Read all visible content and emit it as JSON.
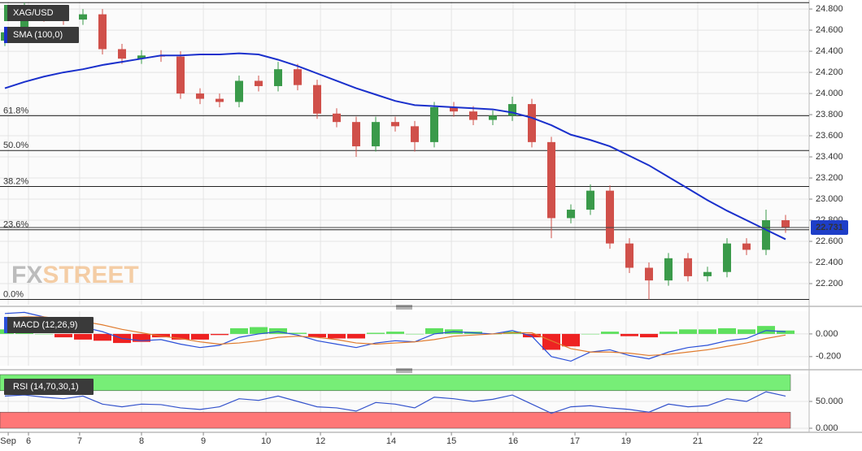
{
  "chart_data": [
    {
      "type": "candlestick",
      "title": "XAG/USD",
      "open": [
        24.5,
        24.58,
        24.75,
        24.73,
        24.7,
        24.75,
        24.42,
        24.33,
        24.36,
        24.35,
        24.0,
        23.95,
        23.92,
        24.12,
        24.07,
        24.23,
        24.08,
        23.81,
        23.73,
        23.5,
        23.73,
        23.69,
        23.54,
        23.87,
        23.83,
        23.75,
        23.79,
        23.9,
        23.54,
        22.82,
        22.9,
        23.08,
        22.58,
        22.35,
        22.23,
        22.44,
        22.27,
        22.31,
        22.58,
        22.52,
        22.8
      ],
      "high": [
        24.63,
        24.86,
        24.8,
        24.78,
        24.8,
        24.8,
        24.47,
        24.41,
        24.41,
        24.4,
        24.05,
        24.0,
        24.17,
        24.17,
        24.3,
        24.28,
        24.13,
        23.86,
        23.78,
        23.78,
        23.78,
        23.74,
        23.92,
        23.92,
        23.88,
        23.84,
        23.97,
        23.95,
        23.59,
        22.95,
        23.14,
        23.13,
        22.63,
        22.4,
        22.49,
        22.49,
        22.36,
        22.63,
        22.63,
        22.9,
        22.85
      ],
      "low": [
        24.45,
        24.53,
        24.68,
        24.65,
        24.65,
        24.37,
        24.28,
        24.28,
        24.3,
        23.95,
        23.9,
        23.87,
        23.87,
        24.02,
        24.02,
        24.03,
        23.76,
        23.68,
        23.4,
        23.45,
        23.64,
        23.45,
        23.49,
        23.78,
        23.7,
        23.7,
        23.74,
        23.49,
        22.63,
        22.77,
        22.85,
        22.53,
        22.3,
        22.05,
        22.18,
        22.22,
        22.22,
        22.26,
        22.47,
        22.47,
        22.68
      ],
      "close": [
        24.58,
        24.75,
        24.73,
        24.7,
        24.75,
        24.42,
        24.33,
        24.36,
        24.35,
        24.0,
        23.95,
        23.92,
        24.12,
        24.07,
        24.23,
        24.08,
        23.81,
        23.73,
        23.5,
        23.73,
        23.69,
        23.54,
        23.87,
        23.83,
        23.75,
        23.79,
        23.9,
        23.54,
        22.82,
        22.9,
        23.08,
        22.58,
        22.35,
        22.23,
        22.44,
        22.27,
        22.31,
        22.58,
        22.52,
        22.8,
        22.73
      ],
      "up_color": "#3a9a4a",
      "down_color": "#d0504a",
      "series": [
        {
          "name": "SMA (100,0)",
          "color": "#1a30cc",
          "values": [
            24.05,
            24.11,
            24.16,
            24.2,
            24.23,
            24.27,
            24.3,
            24.33,
            24.36,
            24.36,
            24.37,
            24.37,
            24.38,
            24.37,
            24.32,
            24.26,
            24.19,
            24.12,
            24.05,
            23.99,
            23.93,
            23.89,
            23.88,
            23.87,
            23.86,
            23.85,
            23.82,
            23.77,
            23.7,
            23.61,
            23.56,
            23.5,
            23.41,
            23.32,
            23.21,
            23.1,
            22.99,
            22.89,
            22.8,
            22.71,
            22.62
          ]
        }
      ],
      "fib_levels": [
        {
          "value": 24.86,
          "label": null
        },
        {
          "value": 23.79,
          "label": "61.8%"
        },
        {
          "value": 23.46,
          "label": "50.0%"
        },
        {
          "value": 23.12,
          "label": "38.2%"
        },
        {
          "value": 22.71,
          "label": "23.6%"
        },
        {
          "value": 22.05,
          "label": "0.0%"
        }
      ],
      "last_price": 22.731,
      "last_price_color": "#1e3ec8",
      "watermark": [
        "FX",
        "STREET"
      ],
      "ylim": [
        22.0,
        24.87
      ],
      "yticks": [
        {
          "value": 22.2,
          "label": "22.200"
        },
        {
          "value": 22.4,
          "label": "22.400"
        },
        {
          "value": 22.6,
          "label": "22.600"
        },
        {
          "value": 22.8,
          "label": "22.800"
        },
        {
          "value": 23.0,
          "label": "23.000"
        },
        {
          "value": 23.2,
          "label": "23.200"
        },
        {
          "value": 23.4,
          "label": "23.400"
        },
        {
          "value": 23.6,
          "label": "23.600"
        },
        {
          "value": 23.8,
          "label": "23.800"
        },
        {
          "value": 24.0,
          "label": "24.000"
        },
        {
          "value": 24.2,
          "label": "24.200"
        },
        {
          "value": 24.4,
          "label": "24.400"
        },
        {
          "value": 24.6,
          "label": "24.600"
        },
        {
          "value": 24.8,
          "label": "24.800"
        }
      ],
      "grid": true
    },
    {
      "type": "macd",
      "title": "MACD (12,26,9)",
      "series": [
        {
          "color": "#2a4fd8",
          "values": [
            0.18,
            0.19,
            0.15,
            0.1,
            0.06,
            0.02,
            -0.04,
            -0.06,
            -0.05,
            -0.09,
            -0.12,
            -0.1,
            -0.03,
            0.0,
            0.02,
            -0.01,
            -0.06,
            -0.09,
            -0.12,
            -0.08,
            -0.06,
            -0.07,
            0.0,
            0.02,
            0.01,
            0.0,
            0.03,
            -0.02,
            -0.2,
            -0.24,
            -0.16,
            -0.14,
            -0.19,
            -0.22,
            -0.16,
            -0.12,
            -0.1,
            -0.06,
            -0.04,
            0.03,
            0.02
          ]
        },
        {
          "color": "#e07a2c",
          "values": [
            0.14,
            0.15,
            0.15,
            0.13,
            0.11,
            0.08,
            0.04,
            0.01,
            -0.02,
            -0.04,
            -0.07,
            -0.09,
            -0.08,
            -0.06,
            -0.03,
            -0.02,
            -0.03,
            -0.05,
            -0.08,
            -0.09,
            -0.08,
            -0.07,
            -0.05,
            -0.02,
            -0.01,
            0.0,
            0.01,
            0.01,
            -0.06,
            -0.13,
            -0.16,
            -0.16,
            -0.17,
            -0.19,
            -0.18,
            -0.16,
            -0.14,
            -0.11,
            -0.08,
            -0.04,
            -0.01
          ]
        }
      ],
      "histogram": {
        "pos_color": "#5ee05e",
        "neg_color": "#ee2222",
        "values": [
          0.04,
          0.04,
          0.0,
          -0.03,
          -0.05,
          -0.06,
          -0.08,
          -0.07,
          -0.03,
          -0.05,
          -0.05,
          -0.01,
          0.05,
          0.06,
          0.05,
          0.01,
          -0.03,
          -0.04,
          -0.04,
          0.01,
          0.02,
          0.0,
          0.05,
          0.04,
          0.02,
          0.0,
          0.02,
          -0.03,
          -0.14,
          -0.11,
          0.0,
          0.02,
          -0.02,
          -0.03,
          0.02,
          0.04,
          0.04,
          0.05,
          0.04,
          0.07,
          0.03
        ]
      },
      "ylim": [
        -0.28,
        0.2
      ],
      "yticks": [
        {
          "value": 0,
          "label": "0.000"
        },
        {
          "value": -0.2,
          "label": "-0.200"
        }
      ],
      "grid": true
    },
    {
      "type": "rsi",
      "title": "RSI (14,70,30,1)",
      "color": "#3352cc",
      "values": [
        60,
        62,
        58,
        55,
        60,
        45,
        40,
        45,
        44,
        38,
        35,
        40,
        55,
        52,
        60,
        50,
        40,
        38,
        32,
        48,
        45,
        38,
        58,
        55,
        50,
        54,
        62,
        45,
        28,
        40,
        42,
        38,
        35,
        30,
        45,
        40,
        42,
        55,
        50,
        68,
        60
      ],
      "overbought": 70,
      "oversold": 30,
      "overbought_color": "#77ee77",
      "oversold_color": "#ff7777",
      "ylim": [
        0,
        100
      ],
      "yticks": [
        {
          "value": 50,
          "label": "50.000"
        },
        {
          "value": 0,
          "label": "0.000"
        }
      ],
      "xticks": [
        {
          "value": 0.17,
          "label": "Sep"
        },
        {
          "value": 1.21,
          "label": "6"
        },
        {
          "value": 3.83,
          "label": "7"
        },
        {
          "value": 7.0,
          "label": "8"
        },
        {
          "value": 10.17,
          "label": "9"
        },
        {
          "value": 13.38,
          "label": "10"
        },
        {
          "value": 16.17,
          "label": "12"
        },
        {
          "value": 19.79,
          "label": "14"
        },
        {
          "value": 22.88,
          "label": "15"
        },
        {
          "value": 26.04,
          "label": "16"
        },
        {
          "value": 29.21,
          "label": "17"
        },
        {
          "value": 31.83,
          "label": "19"
        },
        {
          "value": 35.5,
          "label": "21"
        },
        {
          "value": 38.58,
          "label": "22"
        }
      ],
      "grid": true
    }
  ]
}
